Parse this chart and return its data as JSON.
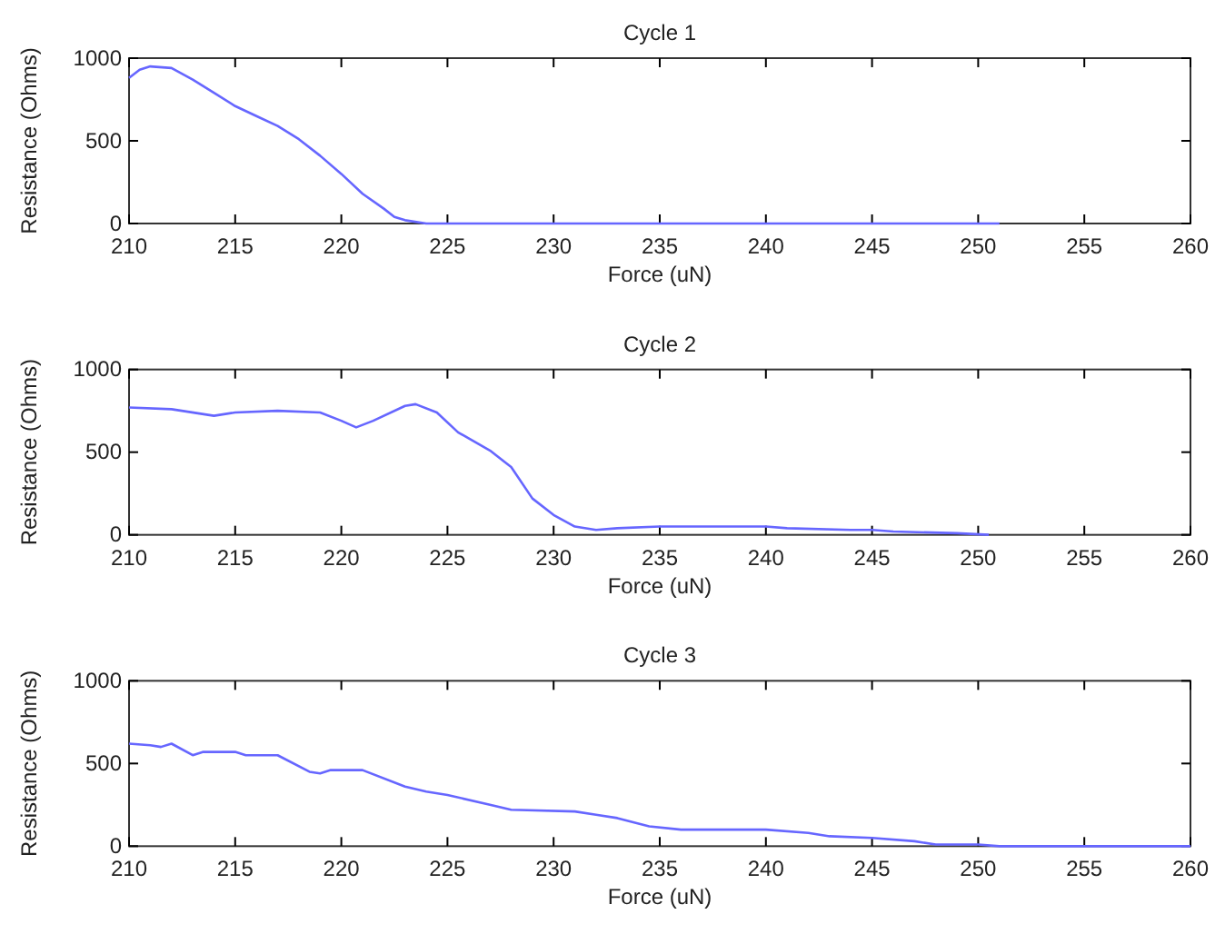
{
  "chart_data": [
    {
      "type": "line",
      "title": "Cycle 1",
      "xlabel": "Force (uN)",
      "ylabel": "Resistance (Ohms)",
      "xlim": [
        210,
        260
      ],
      "xticks": [
        210,
        215,
        220,
        225,
        230,
        235,
        240,
        245,
        250,
        255,
        260
      ],
      "ylim": [
        0,
        1000
      ],
      "yticks": [
        0,
        500,
        1000
      ],
      "series": [
        {
          "color": "#6666ff",
          "x": [
            210,
            210.5,
            211,
            212,
            213,
            214,
            215,
            216,
            217,
            218,
            219,
            220,
            221,
            222,
            222.5,
            223,
            224,
            225,
            230,
            240,
            251
          ],
          "values": [
            880,
            930,
            950,
            940,
            870,
            790,
            710,
            650,
            590,
            510,
            410,
            300,
            180,
            90,
            40,
            20,
            0,
            0,
            0,
            0,
            0
          ]
        }
      ]
    },
    {
      "type": "line",
      "title": "Cycle 2",
      "xlabel": "Force (uN)",
      "ylabel": "Resistance (Ohms)",
      "xlim": [
        210,
        260
      ],
      "xticks": [
        210,
        215,
        220,
        225,
        230,
        235,
        240,
        245,
        250,
        255,
        260
      ],
      "ylim": [
        0,
        1000
      ],
      "yticks": [
        0,
        500,
        1000
      ],
      "series": [
        {
          "color": "#6666ff",
          "x": [
            210,
            212,
            214,
            215,
            217,
            219,
            220,
            220.7,
            221.5,
            223,
            223.5,
            224.5,
            225.5,
            227,
            228,
            229,
            230,
            231,
            232,
            233,
            235,
            240,
            241,
            244,
            245,
            246,
            249,
            250.5
          ],
          "values": [
            770,
            760,
            720,
            740,
            750,
            740,
            690,
            650,
            690,
            780,
            790,
            740,
            620,
            510,
            410,
            220,
            120,
            50,
            30,
            40,
            50,
            50,
            40,
            30,
            30,
            20,
            10,
            0
          ]
        }
      ]
    },
    {
      "type": "line",
      "title": "Cycle 3",
      "xlabel": "Force (uN)",
      "ylabel": "Resistance (Ohms)",
      "xlim": [
        210,
        260
      ],
      "xticks": [
        210,
        215,
        220,
        225,
        230,
        235,
        240,
        245,
        250,
        255,
        260
      ],
      "ylim": [
        0,
        1000
      ],
      "yticks": [
        0,
        500,
        1000
      ],
      "series": [
        {
          "color": "#6666ff",
          "x": [
            210,
            211,
            211.5,
            212,
            213,
            213.5,
            215,
            215.5,
            217,
            218.5,
            219,
            219.5,
            221,
            223,
            224,
            225,
            227,
            228,
            231,
            232,
            233,
            234.5,
            236,
            240,
            242,
            243,
            245,
            247,
            248,
            250,
            251,
            260
          ],
          "values": [
            620,
            610,
            600,
            620,
            550,
            570,
            570,
            550,
            550,
            450,
            440,
            460,
            460,
            360,
            330,
            310,
            250,
            220,
            210,
            190,
            170,
            120,
            100,
            100,
            80,
            60,
            50,
            30,
            10,
            10,
            0,
            0
          ]
        }
      ]
    }
  ]
}
